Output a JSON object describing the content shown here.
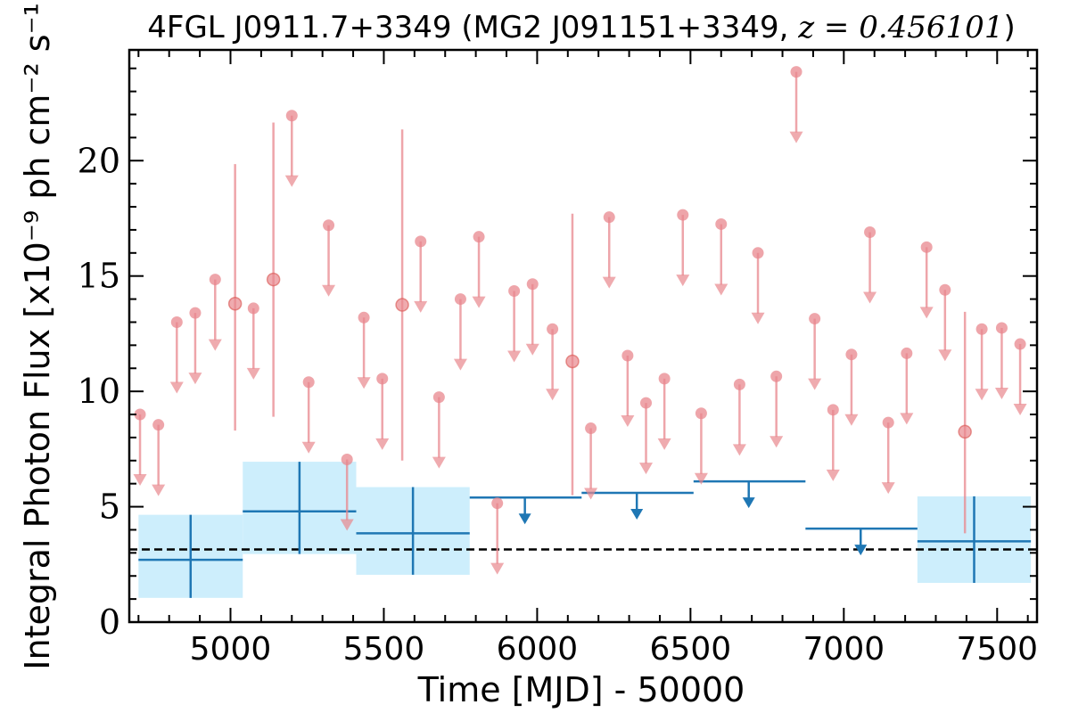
{
  "chart_data": {
    "type": "scatter",
    "title_prefix": "4FGL J0911.7+3349 (MG2 J091151+3349, ",
    "title_math": "z = 0.456101",
    "title_suffix": ")",
    "xlabel": "Time [MJD] - 50000",
    "ylabel": "Integral Photon Flux [x10⁻⁹ ph cm⁻² s⁻¹]",
    "xlim": [
      4670,
      7630
    ],
    "ylim": [
      0,
      24.8
    ],
    "xticks": [
      5000,
      5500,
      6000,
      6500,
      7000,
      7500
    ],
    "yticks": [
      0,
      5,
      10,
      15,
      20
    ],
    "reference_level": 3.15,
    "colors": {
      "short_bins": "#e8878d",
      "long_bins": "#1f77b4",
      "long_bin_band": "#cdeefc",
      "reference_line": "#000000"
    },
    "short_bin_upper_limits": [
      {
        "x": 4705,
        "y": 9.0
      },
      {
        "x": 4765,
        "y": 8.55
      },
      {
        "x": 4825,
        "y": 13.0
      },
      {
        "x": 4885,
        "y": 13.4
      },
      {
        "x": 4950,
        "y": 14.85
      },
      {
        "x": 5075,
        "y": 13.6
      },
      {
        "x": 5200,
        "y": 21.95
      },
      {
        "x": 5255,
        "y": 10.4
      },
      {
        "x": 5320,
        "y": 17.2
      },
      {
        "x": 5380,
        "y": 7.05
      },
      {
        "x": 5435,
        "y": 13.2
      },
      {
        "x": 5495,
        "y": 10.55
      },
      {
        "x": 5620,
        "y": 16.5
      },
      {
        "x": 5680,
        "y": 9.75
      },
      {
        "x": 5750,
        "y": 14.0
      },
      {
        "x": 5810,
        "y": 16.7
      },
      {
        "x": 5870,
        "y": 5.15
      },
      {
        "x": 5925,
        "y": 14.35
      },
      {
        "x": 5985,
        "y": 14.65
      },
      {
        "x": 6050,
        "y": 12.7
      },
      {
        "x": 6175,
        "y": 8.4
      },
      {
        "x": 6235,
        "y": 17.55
      },
      {
        "x": 6295,
        "y": 11.55
      },
      {
        "x": 6355,
        "y": 9.5
      },
      {
        "x": 6415,
        "y": 10.55
      },
      {
        "x": 6475,
        "y": 17.65
      },
      {
        "x": 6535,
        "y": 9.05
      },
      {
        "x": 6600,
        "y": 17.25
      },
      {
        "x": 6660,
        "y": 10.3
      },
      {
        "x": 6720,
        "y": 16.0
      },
      {
        "x": 6780,
        "y": 10.65
      },
      {
        "x": 6845,
        "y": 23.85
      },
      {
        "x": 6905,
        "y": 13.15
      },
      {
        "x": 6965,
        "y": 9.2
      },
      {
        "x": 7025,
        "y": 11.6
      },
      {
        "x": 7085,
        "y": 16.9
      },
      {
        "x": 7145,
        "y": 8.65
      },
      {
        "x": 7205,
        "y": 11.65
      },
      {
        "x": 7270,
        "y": 16.25
      },
      {
        "x": 7330,
        "y": 14.4
      },
      {
        "x": 7450,
        "y": 12.7
      },
      {
        "x": 7515,
        "y": 12.75
      },
      {
        "x": 7575,
        "y": 12.05
      }
    ],
    "short_bin_detections": [
      {
        "x": 5015,
        "y": 13.8,
        "ylow": 8.3,
        "yhigh": 19.85
      },
      {
        "x": 5140,
        "y": 14.85,
        "ylow": 8.9,
        "yhigh": 21.65
      },
      {
        "x": 5560,
        "y": 13.75,
        "ylow": 7.0,
        "yhigh": 21.35
      },
      {
        "x": 6115,
        "y": 11.3,
        "ylow": 5.5,
        "yhigh": 17.7
      },
      {
        "x": 7395,
        "y": 8.25,
        "ylow": 3.85,
        "yhigh": 13.45
      }
    ],
    "long_bin_detections": [
      {
        "x0": 4700,
        "x1": 5040,
        "xc": 4870,
        "y": 2.7,
        "ylow": 1.05,
        "yhigh": 4.65
      },
      {
        "x0": 5040,
        "x1": 5410,
        "xc": 5225,
        "y": 4.8,
        "ylow": 2.95,
        "yhigh": 6.95
      },
      {
        "x0": 5410,
        "x1": 5780,
        "xc": 5595,
        "y": 3.85,
        "ylow": 2.05,
        "yhigh": 5.85
      },
      {
        "x0": 7240,
        "x1": 7610,
        "xc": 7425,
        "y": 3.5,
        "ylow": 1.7,
        "yhigh": 5.45
      }
    ],
    "long_bin_upper_limits": [
      {
        "x0": 5780,
        "x1": 6145,
        "xc": 5960,
        "y": 5.4
      },
      {
        "x0": 6145,
        "x1": 6510,
        "xc": 6325,
        "y": 5.6
      },
      {
        "x0": 6510,
        "x1": 6875,
        "xc": 6690,
        "y": 6.1
      },
      {
        "x0": 6875,
        "x1": 7240,
        "xc": 7055,
        "y": 4.05
      }
    ]
  }
}
